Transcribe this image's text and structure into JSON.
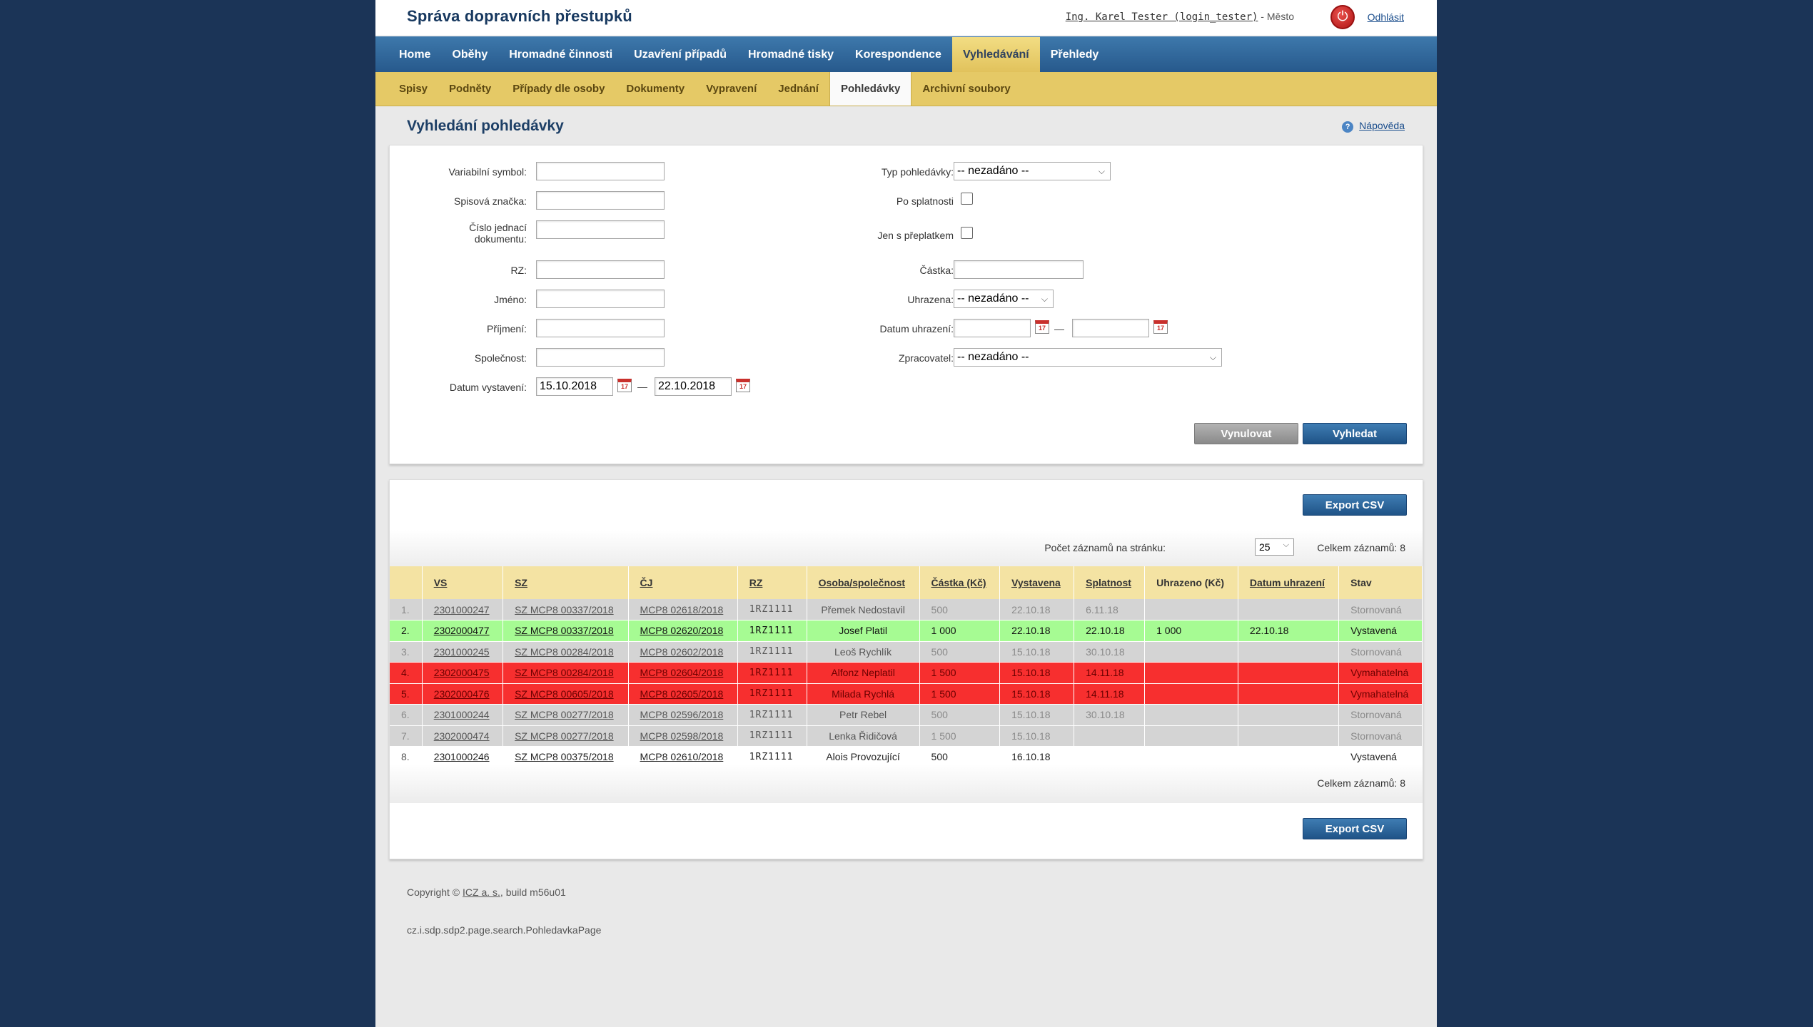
{
  "header": {
    "title": "Správa dopravních přestupků",
    "user_name": "Ing. Karel Tester (login_tester)",
    "user_sep": " - ",
    "user_org": "Město",
    "logout": "Odhlásit"
  },
  "mainnav": [
    "Home",
    "Oběhy",
    "Hromadné činnosti",
    "Uzavření případů",
    "Hromadné tisky",
    "Korespondence",
    "Vyhledávání",
    "Přehledy"
  ],
  "mainnav_active": 6,
  "subnav": [
    "Spisy",
    "Podněty",
    "Případy dle osoby",
    "Dokumenty",
    "Vypravení",
    "Jednání",
    "Pohledávky",
    "Archivní soubory"
  ],
  "subnav_active": 6,
  "page": {
    "title": "Vyhledání pohledávky",
    "help": "Nápověda"
  },
  "form": {
    "variabilni_symbol": {
      "label": "Variabilní symbol:",
      "value": ""
    },
    "spisova_znacka": {
      "label": "Spisová značka:",
      "value": ""
    },
    "cislo_jednaci_1": "Číslo jednací",
    "cislo_jednaci_2": "dokumentu:",
    "cislo_jednaci_value": "",
    "rz": {
      "label": "RZ:",
      "value": ""
    },
    "jmeno": {
      "label": "Jméno:",
      "value": ""
    },
    "prijmeni": {
      "label": "Příjmení:",
      "value": ""
    },
    "spolecnost": {
      "label": "Společnost:",
      "value": ""
    },
    "datum_vystaveni": {
      "label": "Datum vystavení:",
      "from": "15.10.2018",
      "to": "22.10.2018"
    },
    "typ_pohledavky": {
      "label": "Typ pohledávky:",
      "value": "-- nezadáno --"
    },
    "po_splatnosti": {
      "label": "Po splatnosti"
    },
    "jen_s_preplatkem": {
      "label": "Jen s přeplatkem"
    },
    "castka": {
      "label": "Částka:",
      "value": ""
    },
    "uhrazena": {
      "label": "Uhrazena:",
      "value": "-- nezadáno --"
    },
    "datum_uhrazeni": {
      "label": "Datum uhrazení:",
      "from": "",
      "to": ""
    },
    "zpracovatel": {
      "label": "Zpracovatel:",
      "value": "-- nezadáno --"
    },
    "calendar_glyph": "17",
    "range_dash": "—",
    "reset_button": "Vynulovat",
    "search_button": "Vyhledat"
  },
  "results": {
    "export_label": "Export CSV",
    "per_page_label": "Počet záznamů na stránku:",
    "per_page_value": "25",
    "total_label": "Celkem záznamů: 8",
    "columns": [
      "",
      "VS",
      "SZ",
      "ČJ",
      "RZ",
      "Osoba/společnost",
      "Částka (Kč)",
      "Vystavena",
      "Splatnost",
      "Uhrazeno (Kč)",
      "Datum uhrazení",
      "Stav"
    ],
    "rows": [
      {
        "n": "1.",
        "vs": "2301000247",
        "sz": "SZ MCP8 00337/2018",
        "cj": "MCP8 02618/2018",
        "rz": "1RZ1111",
        "osoba": "Přemek Nedostavil",
        "castka": "500",
        "vystavena": "22.10.18",
        "splatnost": "6.11.18",
        "uhrazeno": "",
        "datum_uhrazeni": "",
        "stav": "Stornovaná",
        "style": "st-storno"
      },
      {
        "n": "2.",
        "vs": "2302000477",
        "sz": "SZ MCP8 00337/2018",
        "cj": "MCP8 02620/2018",
        "rz": "1RZ1111",
        "osoba": "Josef Platil",
        "castka": "1 000",
        "vystavena": "22.10.18",
        "splatnost": "22.10.18",
        "uhrazeno": "1 000",
        "datum_uhrazeni": "22.10.18",
        "stav": "Vystavená",
        "style": "st-vyst"
      },
      {
        "n": "3.",
        "vs": "2301000245",
        "sz": "SZ MCP8 00284/2018",
        "cj": "MCP8 02602/2018",
        "rz": "1RZ1111",
        "osoba": "Leoš Rychlík",
        "castka": "500",
        "vystavena": "15.10.18",
        "splatnost": "30.10.18",
        "uhrazeno": "",
        "datum_uhrazeni": "",
        "stav": "Stornovaná",
        "style": "st-storno"
      },
      {
        "n": "4.",
        "vs": "2302000475",
        "sz": "SZ MCP8 00284/2018",
        "cj": "MCP8 02604/2018",
        "rz": "1RZ1111",
        "osoba": "Alfonz Neplatil",
        "castka": "1 500",
        "vystavena": "15.10.18",
        "splatnost": "14.11.18",
        "uhrazeno": "",
        "datum_uhrazeni": "",
        "stav": "Vymahatelná",
        "style": "st-vym"
      },
      {
        "n": "5.",
        "vs": "2302000476",
        "sz": "SZ MCP8 00605/2018",
        "cj": "MCP8 02605/2018",
        "rz": "1RZ1111",
        "osoba": "Milada Rychlá",
        "castka": "1 500",
        "vystavena": "15.10.18",
        "splatnost": "14.11.18",
        "uhrazeno": "",
        "datum_uhrazeni": "",
        "stav": "Vymahatelná",
        "style": "st-vym"
      },
      {
        "n": "6.",
        "vs": "2301000244",
        "sz": "SZ MCP8 00277/2018",
        "cj": "MCP8 02596/2018",
        "rz": "1RZ1111",
        "osoba": "Petr Rebel",
        "castka": "500",
        "vystavena": "15.10.18",
        "splatnost": "30.10.18",
        "uhrazeno": "",
        "datum_uhrazeni": "",
        "stav": "Stornovaná",
        "style": "st-storno"
      },
      {
        "n": "7.",
        "vs": "2302000474",
        "sz": "SZ MCP8 00277/2018",
        "cj": "MCP8 02598/2018",
        "rz": "1RZ1111",
        "osoba": "Lenka Řidičová",
        "castka": "1 500",
        "vystavena": "15.10.18",
        "splatnost": "",
        "uhrazeno": "",
        "datum_uhrazeni": "",
        "stav": "Stornovaná",
        "style": "st-storno"
      },
      {
        "n": "8.",
        "vs": "2301000246",
        "sz": "SZ MCP8 00375/2018",
        "cj": "MCP8 02610/2018",
        "rz": "1RZ1111",
        "osoba": "Alois Provozující",
        "castka": "500",
        "vystavena": "16.10.18",
        "splatnost": "",
        "uhrazeno": "",
        "datum_uhrazeni": "",
        "stav": "Vystavená",
        "style": "st-norm"
      }
    ]
  },
  "footer": {
    "copyright_prefix": "Copyright ©",
    "company": "ICZ a. s.",
    "build": ", build m56u01",
    "page_class": "cz.i.sdp.sdp2.page.search.PohledavkaPage"
  },
  "colors": {
    "background": "#1b3457",
    "nav_blue": "#2c6296",
    "subnav_gold": "#e5c966",
    "row_storno": "#d4d4d4",
    "row_vystavena": "#a6fb93",
    "row_vymahatelna": "#f72f2f"
  },
  "icons": {
    "power": "power-icon",
    "help": "help-icon",
    "calendar": "calendar-icon",
    "dropdown": "chevron-down-icon"
  }
}
